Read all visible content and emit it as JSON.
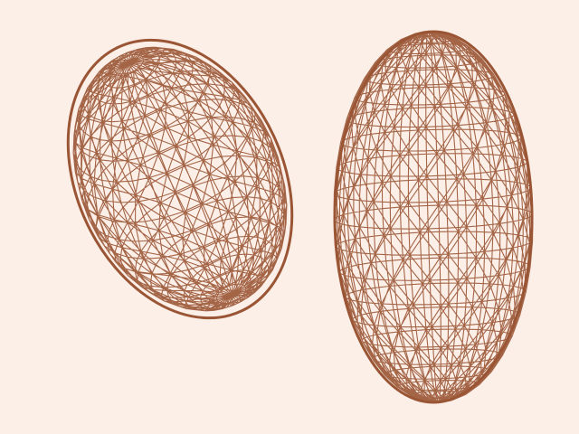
{
  "scene": {
    "background_color": "#fcefe8",
    "stroke_color": "#9a5535",
    "objects": [
      {
        "name": "tilted-wireframe-ellipsoid",
        "mesh": "triangulated-wireframe"
      },
      {
        "name": "upright-wireframe-ellipsoid",
        "mesh": "triangulated-wireframe"
      }
    ]
  }
}
